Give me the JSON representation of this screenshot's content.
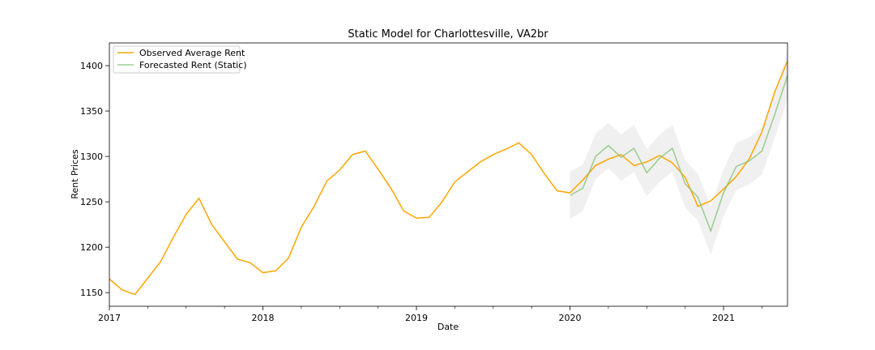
{
  "chart_data": {
    "type": "line",
    "title": "Static Model for Charlottesville, VA2br",
    "xlabel": "Date",
    "ylabel": "Rent Prices",
    "xlim": [
      "2017-01",
      "2021-06"
    ],
    "ylim": [
      1135,
      1425
    ],
    "x_ticks": [
      "2017",
      "2018",
      "2019",
      "2020",
      "2021"
    ],
    "y_ticks": [
      1150,
      1200,
      1250,
      1300,
      1350,
      1400
    ],
    "legend_position": "top-left",
    "grid": false,
    "series": [
      {
        "name": "Observed Average Rent",
        "color": "#ffa500",
        "x": [
          "2017-01",
          "2017-02",
          "2017-03",
          "2017-04",
          "2017-05",
          "2017-06",
          "2017-07",
          "2017-08",
          "2017-09",
          "2017-10",
          "2017-11",
          "2017-12",
          "2018-01",
          "2018-02",
          "2018-03",
          "2018-04",
          "2018-05",
          "2018-06",
          "2018-07",
          "2018-08",
          "2018-09",
          "2018-10",
          "2018-11",
          "2018-12",
          "2019-01",
          "2019-02",
          "2019-03",
          "2019-04",
          "2019-05",
          "2019-06",
          "2019-07",
          "2019-08",
          "2019-09",
          "2019-10",
          "2019-11",
          "2019-12",
          "2020-01",
          "2020-02",
          "2020-03",
          "2020-04",
          "2020-05",
          "2020-06",
          "2020-07",
          "2020-08",
          "2020-09",
          "2020-10",
          "2020-11",
          "2020-12",
          "2021-01",
          "2021-02",
          "2021-03",
          "2021-04",
          "2021-05",
          "2021-06"
        ],
        "values": [
          1165,
          1153,
          1148,
          1166,
          1184,
          1211,
          1236,
          1254,
          1225,
          1206,
          1187,
          1183,
          1172,
          1174,
          1188,
          1222,
          1245,
          1273,
          1285,
          1302,
          1306,
          1286,
          1265,
          1240,
          1232,
          1233,
          1250,
          1272,
          1283,
          1294,
          1302,
          1308,
          1315,
          1302,
          1281,
          1262,
          1260,
          1274,
          1290,
          1297,
          1302,
          1290,
          1294,
          1301,
          1293,
          1277,
          1245,
          1251,
          1264,
          1278,
          1297,
          1327,
          1371,
          1405
        ]
      },
      {
        "name": "Forecasted Rent (Static)",
        "color": "#7fbf6e",
        "x": [
          "2020-01",
          "2020-02",
          "2020-03",
          "2020-04",
          "2020-05",
          "2020-06",
          "2020-07",
          "2020-08",
          "2020-09",
          "2020-10",
          "2020-11",
          "2020-12",
          "2021-01",
          "2021-02",
          "2021-03",
          "2021-04",
          "2021-05",
          "2021-06"
        ],
        "values": [
          1257,
          1265,
          1300,
          1312,
          1299,
          1309,
          1282,
          1298,
          1309,
          1270,
          1255,
          1218,
          1260,
          1289,
          1295,
          1306,
          1346,
          1389
        ],
        "ci_lower": [
          1231,
          1240,
          1275,
          1287,
          1273,
          1283,
          1256,
          1272,
          1283,
          1244,
          1229,
          1192,
          1234,
          1263,
          1269,
          1280,
          1320,
          1363
        ],
        "ci_upper": [
          1283,
          1291,
          1325,
          1337,
          1324,
          1335,
          1308,
          1324,
          1335,
          1296,
          1281,
          1244,
          1286,
          1315,
          1321,
          1332,
          1372,
          1415
        ]
      }
    ]
  }
}
